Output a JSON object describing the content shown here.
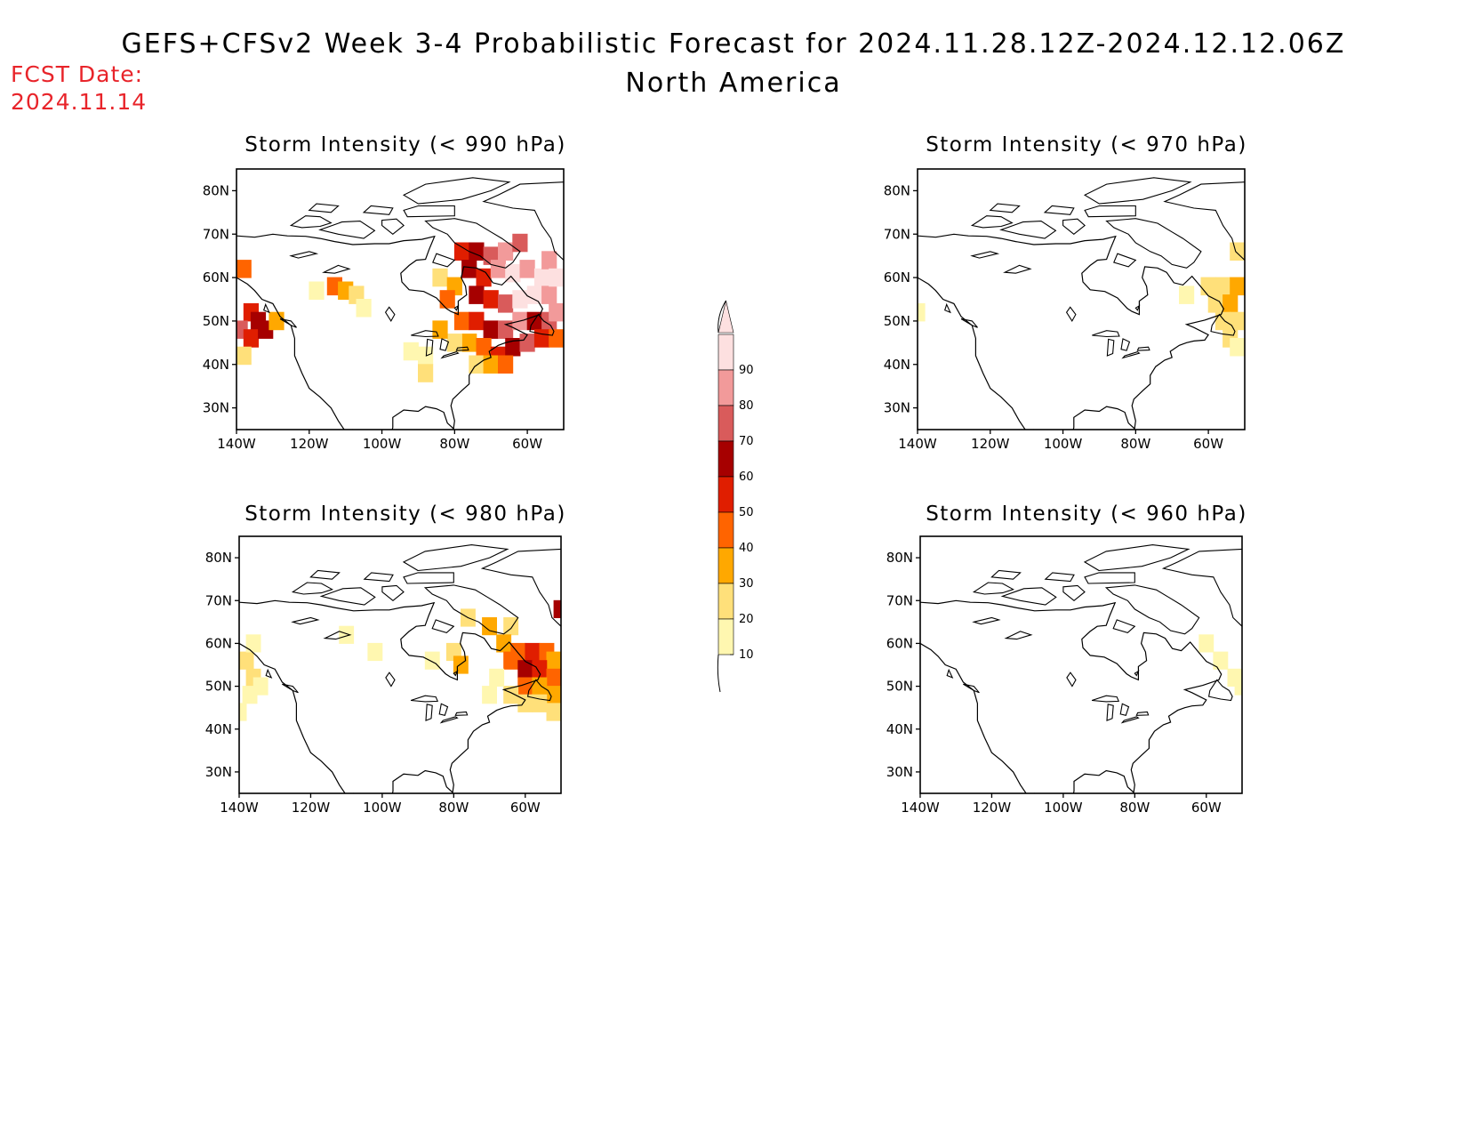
{
  "header": {
    "title": "GEFS+CFSv2 Week 3-4 Probabilistic Forecast for 2024.11.28.12Z-2024.12.12.06Z",
    "subtitle": "North America",
    "fcst_line1": "FCST Date:",
    "fcst_line2": "2024.11.14"
  },
  "axes": {
    "lat_ticks": [
      "80N",
      "70N",
      "60N",
      "50N",
      "40N",
      "30N"
    ],
    "lon_ticks": [
      "140W",
      "120W",
      "100W",
      "80W",
      "60W"
    ]
  },
  "colorbar": {
    "levels": [
      "10",
      "20",
      "30",
      "40",
      "50",
      "60",
      "70",
      "80",
      "90"
    ],
    "colors": [
      "#fff7b0",
      "#ffe07a",
      "#ffa800",
      "#ff6400",
      "#e01e00",
      "#a60000",
      "#d95b5b",
      "#f29a9a",
      "#fde0e0"
    ]
  },
  "panels": [
    {
      "id": "p990",
      "title": "Storm Intensity (< 990 hPa)",
      "threshold_hPa": 990,
      "cells": [
        [
          -138,
          62,
          3
        ],
        [
          -136,
          52,
          4
        ],
        [
          -134,
          50,
          5
        ],
        [
          -139,
          48,
          6
        ],
        [
          -136,
          46,
          4
        ],
        [
          -132,
          48,
          5
        ],
        [
          -129,
          50,
          2
        ],
        [
          -138,
          42,
          1
        ],
        [
          -113,
          58,
          3
        ],
        [
          -110,
          57,
          2
        ],
        [
          -107,
          56,
          1
        ],
        [
          -118,
          57,
          0
        ],
        [
          -105,
          53,
          0
        ],
        [
          -84,
          60,
          1
        ],
        [
          -80,
          58,
          2
        ],
        [
          -82,
          55,
          3
        ],
        [
          -78,
          66,
          4
        ],
        [
          -74,
          66,
          5
        ],
        [
          -70,
          65,
          6
        ],
        [
          -66,
          66,
          7
        ],
        [
          -62,
          68,
          6
        ],
        [
          -76,
          62,
          5
        ],
        [
          -72,
          60,
          4
        ],
        [
          -68,
          62,
          7
        ],
        [
          -64,
          61,
          8
        ],
        [
          -60,
          62,
          7
        ],
        [
          -56,
          60,
          8
        ],
        [
          -54,
          64,
          7
        ],
        [
          -74,
          56,
          5
        ],
        [
          -70,
          55,
          4
        ],
        [
          -66,
          54,
          6
        ],
        [
          -62,
          55,
          8
        ],
        [
          -58,
          56,
          8
        ],
        [
          -54,
          56,
          7
        ],
        [
          -52,
          60,
          8
        ],
        [
          -78,
          50,
          3
        ],
        [
          -74,
          50,
          4
        ],
        [
          -70,
          48,
          5
        ],
        [
          -66,
          48,
          6
        ],
        [
          -62,
          50,
          7
        ],
        [
          -58,
          50,
          5
        ],
        [
          -54,
          50,
          6
        ],
        [
          -52,
          52,
          7
        ],
        [
          -76,
          45,
          2
        ],
        [
          -72,
          44,
          3
        ],
        [
          -68,
          42,
          4
        ],
        [
          -64,
          44,
          5
        ],
        [
          -60,
          45,
          6
        ],
        [
          -56,
          46,
          4
        ],
        [
          -52,
          46,
          3
        ],
        [
          -74,
          40,
          1
        ],
        [
          -70,
          40,
          2
        ],
        [
          -66,
          40,
          3
        ],
        [
          -80,
          45,
          1
        ],
        [
          -84,
          48,
          2
        ],
        [
          -88,
          42,
          0
        ],
        [
          -92,
          43,
          0
        ],
        [
          -88,
          38,
          1
        ]
      ]
    },
    {
      "id": "p970",
      "title": "Storm Intensity (< 970 hPa)",
      "threshold_hPa": 970,
      "cells": [
        [
          -60,
          58,
          1
        ],
        [
          -56,
          58,
          1
        ],
        [
          -52,
          58,
          2
        ],
        [
          -58,
          54,
          1
        ],
        [
          -54,
          54,
          2
        ],
        [
          -52,
          50,
          1
        ],
        [
          -56,
          50,
          1
        ],
        [
          -54,
          46,
          1
        ],
        [
          -52,
          66,
          1
        ],
        [
          -66,
          56,
          0
        ],
        [
          -52,
          44,
          0
        ],
        [
          -140,
          52,
          0
        ]
      ]
    },
    {
      "id": "p980",
      "title": "Storm Intensity (< 980 hPa)",
      "threshold_hPa": 980,
      "cells": [
        [
          -138,
          56,
          1
        ],
        [
          -136,
          52,
          1
        ],
        [
          -137,
          48,
          0
        ],
        [
          -134,
          50,
          0
        ],
        [
          -140,
          44,
          0
        ],
        [
          -136,
          60,
          0
        ],
        [
          -110,
          62,
          0
        ],
        [
          -102,
          58,
          0
        ],
        [
          -86,
          56,
          0
        ],
        [
          -80,
          58,
          1
        ],
        [
          -78,
          55,
          2
        ],
        [
          -76,
          66,
          1
        ],
        [
          -70,
          64,
          2
        ],
        [
          -64,
          64,
          1
        ],
        [
          -66,
          60,
          2
        ],
        [
          -62,
          58,
          3
        ],
        [
          -58,
          58,
          4
        ],
        [
          -54,
          58,
          3
        ],
        [
          -52,
          56,
          2
        ],
        [
          -64,
          56,
          3
        ],
        [
          -60,
          54,
          5
        ],
        [
          -56,
          54,
          4
        ],
        [
          -52,
          52,
          3
        ],
        [
          -60,
          50,
          3
        ],
        [
          -56,
          50,
          2
        ],
        [
          -52,
          48,
          2
        ],
        [
          -64,
          48,
          1
        ],
        [
          -60,
          46,
          1
        ],
        [
          -56,
          46,
          1
        ],
        [
          -52,
          44,
          1
        ],
        [
          -70,
          48,
          0
        ],
        [
          -68,
          52,
          0
        ],
        [
          -50,
          68,
          5
        ]
      ]
    },
    {
      "id": "p960",
      "title": "Storm Intensity (< 960 hPa)",
      "threshold_hPa": 960,
      "cells": [
        [
          -60,
          60,
          0
        ],
        [
          -56,
          56,
          0
        ],
        [
          -52,
          52,
          0
        ],
        [
          -50,
          50,
          0
        ]
      ]
    }
  ]
}
